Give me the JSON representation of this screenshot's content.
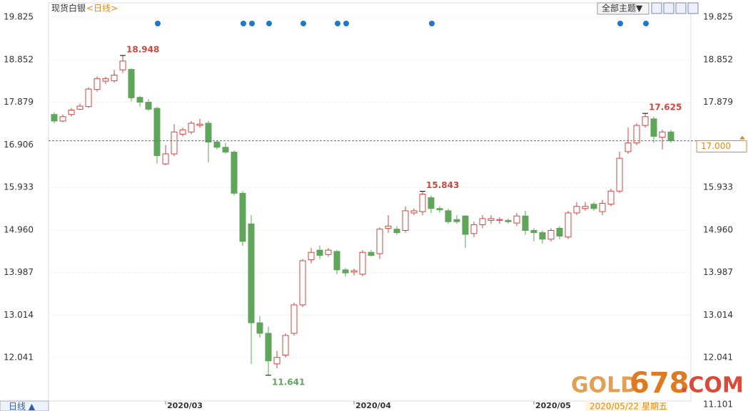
{
  "header": {
    "symbol": "现货白银",
    "period_link": "<日线>",
    "theme_button": "全部主题▼"
  },
  "footer": {
    "period_button": "日线 ▲",
    "cursor_date": "2020/05/22 星期五"
  },
  "watermark": {
    "brand": "GOLD",
    "digits": "678",
    "suffix": ".COM"
  },
  "chart_data": {
    "type": "candlestick",
    "categories": [
      null,
      null,
      null,
      null,
      null,
      null,
      null,
      null,
      null,
      null,
      null,
      null,
      null,
      "2020/03",
      null,
      null,
      null,
      null,
      null,
      null,
      null,
      null,
      null,
      null,
      null,
      null,
      null,
      null,
      null,
      null,
      null,
      null,
      null,
      null,
      null,
      "2020/04",
      null,
      null,
      null,
      null,
      null,
      null,
      null,
      null,
      null,
      null,
      null,
      null,
      null,
      null,
      null,
      null,
      null,
      null,
      null,
      null,
      "2020/05",
      null,
      null,
      null,
      null,
      null,
      null,
      null,
      null,
      null,
      null,
      null,
      null,
      null,
      null,
      null,
      null
    ],
    "open": [
      17.6,
      17.45,
      17.6,
      17.72,
      17.78,
      18.17,
      18.36,
      18.37,
      18.62,
      18.63,
      17.99,
      17.88,
      17.74,
      16.47,
      16.7,
      17.15,
      17.2,
      17.35,
      17.4,
      16.97,
      16.85,
      16.74,
      15.8,
      15.1,
      12.84,
      12.6,
      11.9,
      12.1,
      12.6,
      13.25,
      14.28,
      14.5,
      14.4,
      14.47,
      14.05,
      14.0,
      13.95,
      14.45,
      14.42,
      15.0,
      14.98,
      14.95,
      15.35,
      15.38,
      15.7,
      15.45,
      15.4,
      15.2,
      15.28,
      14.88,
      15.08,
      15.18,
      15.18,
      15.18,
      15.12,
      15.28,
      14.95,
      14.9,
      14.75,
      15.0,
      14.8,
      15.35,
      15.45,
      15.55,
      15.38,
      15.55,
      15.85,
      16.75,
      16.95,
      17.35,
      17.5,
      17.08,
      17.2
    ],
    "high": [
      17.65,
      17.6,
      17.75,
      17.85,
      18.22,
      18.47,
      18.46,
      18.62,
      18.948,
      18.66,
      18.02,
      17.95,
      17.78,
      16.9,
      17.38,
      17.3,
      17.45,
      17.5,
      17.45,
      17.0,
      16.95,
      16.78,
      15.85,
      15.3,
      13.0,
      12.75,
      12.2,
      12.6,
      13.3,
      14.3,
      14.55,
      14.6,
      14.55,
      14.5,
      14.1,
      14.08,
      14.5,
      14.5,
      15.02,
      15.3,
      15.05,
      15.5,
      15.45,
      15.843,
      15.75,
      15.5,
      15.45,
      15.3,
      15.3,
      15.15,
      15.3,
      15.3,
      15.25,
      15.22,
      15.35,
      15.4,
      15.0,
      14.95,
      15.0,
      15.05,
      15.4,
      15.6,
      15.6,
      15.6,
      15.65,
      15.9,
      16.75,
      17.3,
      17.4,
      17.625,
      17.55,
      17.25,
      17.25
    ],
    "low": [
      17.4,
      17.42,
      17.55,
      17.7,
      17.75,
      18.12,
      18.3,
      18.33,
      18.55,
      17.9,
      17.78,
      17.68,
      16.48,
      16.44,
      16.65,
      17.1,
      17.15,
      17.3,
      16.5,
      16.8,
      16.7,
      15.75,
      14.6,
      11.9,
      12.5,
      11.641,
      11.8,
      12.05,
      12.55,
      13.2,
      14.2,
      14.3,
      14.35,
      13.95,
      13.9,
      13.92,
      13.9,
      14.35,
      14.3,
      14.9,
      14.85,
      14.9,
      15.3,
      15.3,
      15.35,
      15.35,
      15.1,
      15.1,
      14.55,
      14.8,
      15.0,
      15.1,
      15.1,
      15.1,
      15.05,
      14.85,
      14.7,
      14.65,
      14.7,
      14.75,
      14.75,
      15.3,
      15.4,
      15.4,
      15.3,
      15.5,
      15.8,
      16.7,
      16.9,
      17.3,
      16.95,
      16.8,
      16.95
    ],
    "close": [
      17.45,
      17.55,
      17.7,
      17.79,
      18.18,
      18.42,
      18.42,
      18.5,
      18.82,
      17.98,
      17.88,
      17.72,
      16.66,
      16.7,
      17.2,
      17.25,
      17.4,
      17.38,
      16.97,
      16.85,
      16.74,
      15.8,
      14.7,
      12.84,
      12.6,
      11.97,
      12.05,
      12.55,
      13.25,
      14.26,
      14.45,
      14.38,
      14.5,
      14.05,
      13.98,
      14.03,
      14.45,
      14.38,
      14.98,
      15.05,
      14.9,
      15.4,
      15.4,
      15.78,
      15.45,
      15.42,
      15.15,
      15.15,
      14.86,
      15.08,
      15.22,
      15.22,
      15.2,
      15.15,
      15.28,
      14.95,
      14.9,
      14.75,
      14.95,
      14.82,
      15.35,
      15.5,
      15.5,
      15.45,
      15.57,
      15.85,
      16.6,
      16.95,
      17.35,
      17.55,
      17.1,
      17.2,
      17.0
    ],
    "up_color": "#d0453f",
    "down_color": "#5fa55a",
    "ylim": [
      11.101,
      19.825
    ],
    "yticks": [
      12.041,
      13.014,
      13.987,
      {
        "value": 14.96,
        "label": "14.960"
      },
      15.933,
      16.906,
      17.879,
      18.852,
      19.825
    ],
    "last_price": {
      "value": 17,
      "label": "17.000"
    },
    "grid": true
  }
}
